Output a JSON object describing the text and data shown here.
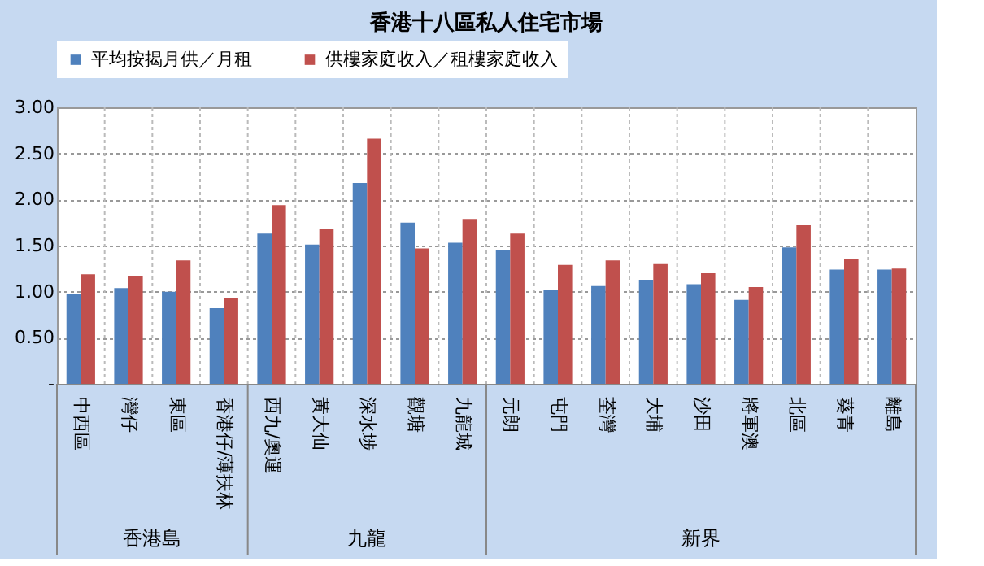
{
  "chart_data": {
    "type": "bar",
    "title": "香港十八區私人住宅市場",
    "categories": [
      "中西區",
      "灣仔",
      "東區",
      "香港仔/薄扶林",
      "西九/奧運",
      "黃大仙",
      "深水埗",
      "觀塘",
      "九龍城",
      "元朗",
      "屯門",
      "荃灣",
      "大埔",
      "沙田",
      "將軍澳",
      "北區",
      "葵青",
      "離島"
    ],
    "series": [
      {
        "name": "平均按揭月供／月租",
        "color": "#4f81bd",
        "values": [
          0.97,
          1.04,
          1.0,
          0.82,
          1.63,
          1.51,
          2.18,
          1.75,
          1.53,
          1.45,
          1.02,
          1.06,
          1.13,
          1.08,
          0.91,
          1.48,
          1.24,
          1.24
        ]
      },
      {
        "name": "供樓家庭收入／租樓家庭收入",
        "color": "#c0504d",
        "values": [
          1.19,
          1.17,
          1.34,
          0.93,
          1.94,
          1.68,
          2.66,
          1.47,
          1.79,
          1.63,
          1.29,
          1.34,
          1.3,
          1.2,
          1.05,
          1.72,
          1.35,
          1.25
        ]
      }
    ],
    "ylim": [
      0,
      3
    ],
    "yticks": [
      {
        "value": 0,
        "label": "-"
      },
      {
        "value": 0.5,
        "label": "0.50"
      },
      {
        "value": 1,
        "label": "1.00"
      },
      {
        "value": 1.5,
        "label": "1.50"
      },
      {
        "value": 2,
        "label": "2.00"
      },
      {
        "value": 2.5,
        "label": "2.50"
      },
      {
        "value": 3,
        "label": "3.00"
      }
    ],
    "annotations": [
      "香港島",
      "九龍",
      "新界"
    ],
    "grid": true,
    "legend": "top"
  }
}
